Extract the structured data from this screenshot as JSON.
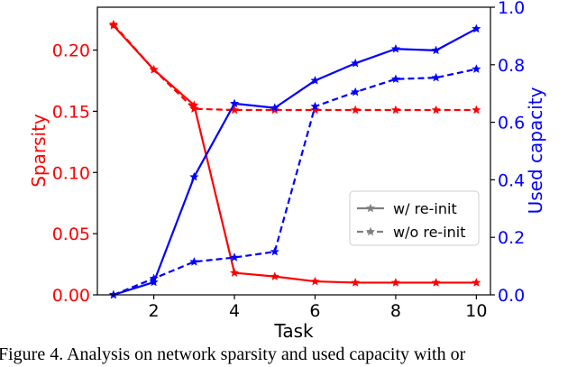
{
  "chart_data": {
    "type": "line",
    "xlabel": "Task",
    "ylabel_left": "Sparsity",
    "ylabel_right": "Used capacity",
    "x": [
      1,
      2,
      3,
      4,
      5,
      6,
      7,
      8,
      9,
      10
    ],
    "xlim": [
      0.6,
      10.35
    ],
    "ylim_left": [
      0.0,
      0.235
    ],
    "ylim_right": [
      0.0,
      1.0
    ],
    "x_ticks": [
      "2",
      "4",
      "6",
      "8",
      "10"
    ],
    "x_tick_values": [
      2,
      4,
      6,
      8,
      10
    ],
    "y_ticks_left": [
      "0.00",
      "0.05",
      "0.10",
      "0.15",
      "0.20"
    ],
    "y_tick_values_left": [
      0,
      0.05,
      0.1,
      0.15,
      0.2
    ],
    "y_ticks_right": [
      "0.0",
      "0.2",
      "0.4",
      "0.6",
      "0.8",
      "1.0"
    ],
    "y_tick_values_right": [
      0,
      0.2,
      0.4,
      0.6,
      0.8,
      1.0
    ],
    "left_color": "#ff0000",
    "right_color": "#0000ff",
    "series": [
      {
        "axis": "left",
        "style": "solid",
        "color": "#ff0000",
        "values": [
          0.22,
          0.184,
          0.155,
          0.018,
          0.015,
          0.011,
          0.01,
          0.01,
          0.01,
          0.01
        ]
      },
      {
        "axis": "left",
        "style": "dashed",
        "color": "#ff0000",
        "values": [
          0.221,
          0.184,
          0.152,
          0.151,
          0.151,
          0.151,
          0.151,
          0.151,
          0.151,
          0.151
        ]
      },
      {
        "axis": "right",
        "style": "solid",
        "color": "#0000ff",
        "values": [
          0.0,
          0.044,
          0.41,
          0.665,
          0.65,
          0.745,
          0.805,
          0.855,
          0.85,
          0.925
        ]
      },
      {
        "axis": "right",
        "style": "dashed",
        "color": "#0000ff",
        "values": [
          0.0,
          0.057,
          0.115,
          0.13,
          0.15,
          0.655,
          0.705,
          0.75,
          0.755,
          0.785
        ]
      }
    ],
    "legend": {
      "position": "center-right",
      "entries": [
        {
          "label": "w/ re-init",
          "style": "solid",
          "color": "#808080"
        },
        {
          "label": "w/o re-init",
          "style": "dashed",
          "color": "#808080"
        }
      ]
    }
  },
  "caption": "Figure 4. Analysis on network sparsity and used capacity with or"
}
